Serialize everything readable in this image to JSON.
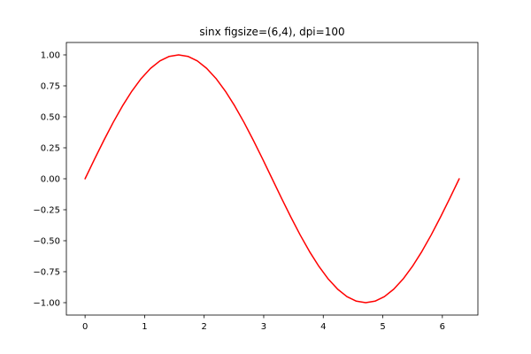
{
  "chart_data": {
    "type": "line",
    "title": "sinx figsize=(6,4), dpi=100",
    "xlabel": "",
    "ylabel": "",
    "xlim": [
      -0.314,
      6.597
    ],
    "ylim": [
      -1.1,
      1.1
    ],
    "xticks": [
      0,
      1,
      2,
      3,
      4,
      5,
      6
    ],
    "xtick_labels": [
      "0",
      "1",
      "2",
      "3",
      "4",
      "5",
      "6"
    ],
    "yticks": [
      -1.0,
      -0.75,
      -0.5,
      -0.25,
      0.0,
      0.25,
      0.5,
      0.75,
      1.0
    ],
    "ytick_labels": [
      "−1.00",
      "−0.75",
      "−0.50",
      "−0.25",
      "0.00",
      "0.25",
      "0.50",
      "0.75",
      "1.00"
    ],
    "grid": false,
    "series": [
      {
        "color": "#ff0000",
        "x": [
          0.0,
          0.1571,
          0.3142,
          0.4712,
          0.6283,
          0.7854,
          0.9425,
          1.0996,
          1.2566,
          1.4137,
          1.5708,
          1.7279,
          1.885,
          2.042,
          2.1991,
          2.3562,
          2.5133,
          2.6704,
          2.8274,
          2.9845,
          3.1416,
          3.2987,
          3.4558,
          3.6128,
          3.7699,
          3.927,
          4.0841,
          4.2412,
          4.3982,
          4.5553,
          4.7124,
          4.8695,
          5.0265,
          5.1836,
          5.3407,
          5.4978,
          5.6549,
          5.8119,
          5.969,
          6.1261,
          6.2832
        ],
        "y": [
          0.0,
          0.1564,
          0.309,
          0.454,
          0.5878,
          0.7071,
          0.809,
          0.891,
          0.9511,
          0.9877,
          1.0,
          0.9877,
          0.9511,
          0.891,
          0.809,
          0.7071,
          0.5878,
          0.454,
          0.309,
          0.1564,
          0.0,
          -0.1564,
          -0.309,
          -0.454,
          -0.5878,
          -0.7071,
          -0.809,
          -0.891,
          -0.9511,
          -0.9877,
          -1.0,
          -0.9877,
          -0.9511,
          -0.891,
          -0.809,
          -0.7071,
          -0.5878,
          -0.454,
          -0.309,
          -0.1564,
          0.0
        ]
      }
    ]
  }
}
